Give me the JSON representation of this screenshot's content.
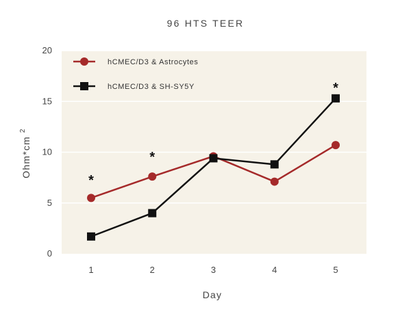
{
  "chart_data": {
    "type": "line",
    "title": "96 HTS TEER",
    "xlabel": "Day",
    "ylabel": "Ohm*cm",
    "ylabel_superscript": "2",
    "categories": [
      "1",
      "2",
      "3",
      "4",
      "5"
    ],
    "ylim": [
      0,
      20
    ],
    "yticks": [
      "0",
      "5",
      "10",
      "15",
      "20"
    ],
    "grid": true,
    "legend_position": "top-left",
    "series": [
      {
        "name": "hCMEC/D3 & Astrocytes",
        "values": [
          5.5,
          7.6,
          9.6,
          7.1,
          10.7
        ],
        "color": "#a52a2a",
        "marker": "circle"
      },
      {
        "name": "hCMEC/D3 & SH-SY5Y",
        "values": [
          1.7,
          4.0,
          9.4,
          8.8,
          15.3
        ],
        "color": "#111111",
        "marker": "square"
      }
    ],
    "annotations": [
      {
        "text": "*",
        "x": "1",
        "y": 7.6
      },
      {
        "text": "*",
        "x": "2",
        "y": 9.9
      },
      {
        "text": "*",
        "x": "5",
        "y": 16.7
      }
    ],
    "plot_background": "#f6f2e8"
  }
}
